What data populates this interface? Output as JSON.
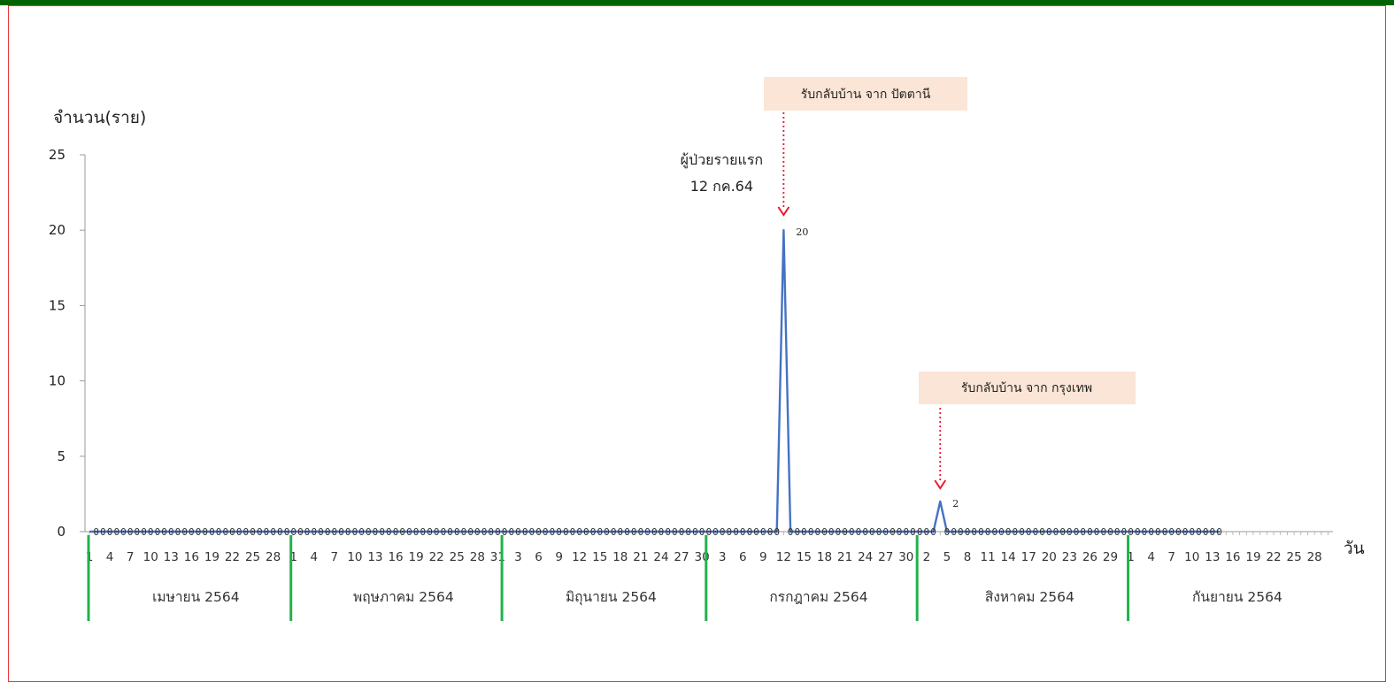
{
  "chart_data": {
    "type": "line",
    "title": "",
    "ylabel": "จำนวน(ราย)",
    "xlabel": "วัน",
    "ylim": [
      0,
      25
    ],
    "yticks": [
      0,
      5,
      10,
      15,
      20,
      25
    ],
    "grid": false,
    "start_date": "2021-04-01",
    "months": [
      {
        "label": "เมษายน 2564",
        "days": 30,
        "ticks": [
          1,
          4,
          7,
          10,
          13,
          16,
          19,
          22,
          25,
          28
        ]
      },
      {
        "label": "พฤษภาคม 2564",
        "days": 31,
        "ticks": [
          1,
          4,
          7,
          10,
          13,
          16,
          19,
          22,
          25,
          28,
          31
        ]
      },
      {
        "label": "มิถุนายน 2564",
        "days": 30,
        "ticks": [
          3,
          6,
          9,
          12,
          15,
          18,
          21,
          24,
          27,
          30
        ]
      },
      {
        "label": "กรกฎาคม 2564",
        "days": 31,
        "ticks": [
          3,
          6,
          9,
          12,
          15,
          18,
          21,
          24,
          27,
          30
        ]
      },
      {
        "label": "สิงหาคม 2564",
        "days": 31,
        "ticks": [
          2,
          5,
          8,
          11,
          14,
          17,
          20,
          23,
          26,
          29
        ]
      },
      {
        "label": "กันยายน 2564",
        "days": 30,
        "ticks": [
          1,
          4,
          7,
          10,
          13,
          16,
          19,
          22,
          25,
          28
        ]
      }
    ],
    "series": [
      {
        "name": "",
        "color": "#4472c4",
        "data_end_date": "2021-09-14",
        "nonzero": [
          {
            "date": "2021-07-12",
            "value": 20,
            "label": "20"
          },
          {
            "date": "2021-08-04",
            "value": 2,
            "label": "2"
          }
        ],
        "zero_label": "0"
      }
    ],
    "annotations": [
      {
        "text": "ผู้ป่วยรายแรก",
        "line2": "12 กค.64",
        "date": "2021-07-12"
      },
      {
        "text": "รับกลับบ้าน จาก ปัตตานี",
        "date": "2021-07-12",
        "fill": "#fbe5d6"
      },
      {
        "text": "รับกลับบ้าน จาก กรุงเทพ",
        "date": "2021-08-04",
        "fill": "#fbe5d6"
      }
    ]
  },
  "colors": {
    "top_bar": "#006400",
    "border": "#e53935",
    "line": "#4472c4",
    "month_divider": "#22b14c",
    "arrow": "#e8192c",
    "callout_fill": "#fbe5d6"
  }
}
